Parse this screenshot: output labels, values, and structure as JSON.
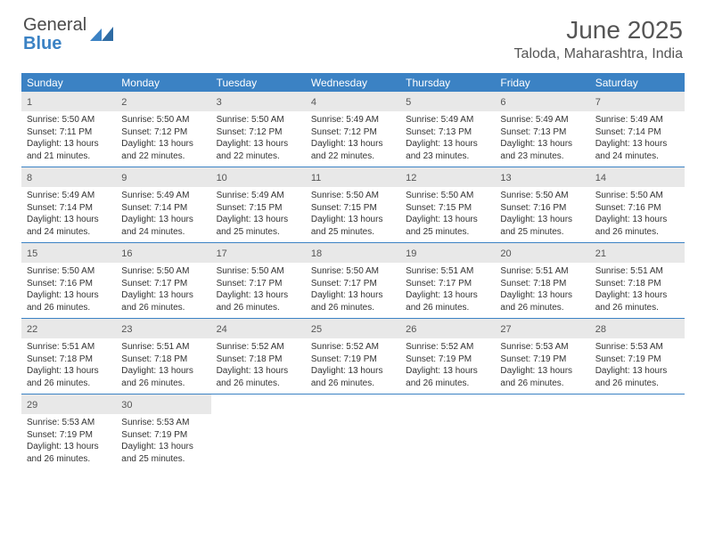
{
  "brand": {
    "part1": "General",
    "part2": "Blue"
  },
  "title": "June 2025",
  "location": "Taloda, Maharashtra, India",
  "colors": {
    "header_bg": "#3b82c4",
    "header_text": "#ffffff",
    "daynum_bg": "#e8e8e8",
    "text": "#333333",
    "title_text": "#555555",
    "border": "#3b82c4"
  },
  "weekdays": [
    "Sunday",
    "Monday",
    "Tuesday",
    "Wednesday",
    "Thursday",
    "Friday",
    "Saturday"
  ],
  "first_weekday_index": 0,
  "days": [
    {
      "n": 1,
      "rise": "5:50 AM",
      "set": "7:11 PM",
      "dlh": 13,
      "dlm": 21
    },
    {
      "n": 2,
      "rise": "5:50 AM",
      "set": "7:12 PM",
      "dlh": 13,
      "dlm": 22
    },
    {
      "n": 3,
      "rise": "5:50 AM",
      "set": "7:12 PM",
      "dlh": 13,
      "dlm": 22
    },
    {
      "n": 4,
      "rise": "5:49 AM",
      "set": "7:12 PM",
      "dlh": 13,
      "dlm": 22
    },
    {
      "n": 5,
      "rise": "5:49 AM",
      "set": "7:13 PM",
      "dlh": 13,
      "dlm": 23
    },
    {
      "n": 6,
      "rise": "5:49 AM",
      "set": "7:13 PM",
      "dlh": 13,
      "dlm": 23
    },
    {
      "n": 7,
      "rise": "5:49 AM",
      "set": "7:14 PM",
      "dlh": 13,
      "dlm": 24
    },
    {
      "n": 8,
      "rise": "5:49 AM",
      "set": "7:14 PM",
      "dlh": 13,
      "dlm": 24
    },
    {
      "n": 9,
      "rise": "5:49 AM",
      "set": "7:14 PM",
      "dlh": 13,
      "dlm": 24
    },
    {
      "n": 10,
      "rise": "5:49 AM",
      "set": "7:15 PM",
      "dlh": 13,
      "dlm": 25
    },
    {
      "n": 11,
      "rise": "5:50 AM",
      "set": "7:15 PM",
      "dlh": 13,
      "dlm": 25
    },
    {
      "n": 12,
      "rise": "5:50 AM",
      "set": "7:15 PM",
      "dlh": 13,
      "dlm": 25
    },
    {
      "n": 13,
      "rise": "5:50 AM",
      "set": "7:16 PM",
      "dlh": 13,
      "dlm": 25
    },
    {
      "n": 14,
      "rise": "5:50 AM",
      "set": "7:16 PM",
      "dlh": 13,
      "dlm": 26
    },
    {
      "n": 15,
      "rise": "5:50 AM",
      "set": "7:16 PM",
      "dlh": 13,
      "dlm": 26
    },
    {
      "n": 16,
      "rise": "5:50 AM",
      "set": "7:17 PM",
      "dlh": 13,
      "dlm": 26
    },
    {
      "n": 17,
      "rise": "5:50 AM",
      "set": "7:17 PM",
      "dlh": 13,
      "dlm": 26
    },
    {
      "n": 18,
      "rise": "5:50 AM",
      "set": "7:17 PM",
      "dlh": 13,
      "dlm": 26
    },
    {
      "n": 19,
      "rise": "5:51 AM",
      "set": "7:17 PM",
      "dlh": 13,
      "dlm": 26
    },
    {
      "n": 20,
      "rise": "5:51 AM",
      "set": "7:18 PM",
      "dlh": 13,
      "dlm": 26
    },
    {
      "n": 21,
      "rise": "5:51 AM",
      "set": "7:18 PM",
      "dlh": 13,
      "dlm": 26
    },
    {
      "n": 22,
      "rise": "5:51 AM",
      "set": "7:18 PM",
      "dlh": 13,
      "dlm": 26
    },
    {
      "n": 23,
      "rise": "5:51 AM",
      "set": "7:18 PM",
      "dlh": 13,
      "dlm": 26
    },
    {
      "n": 24,
      "rise": "5:52 AM",
      "set": "7:18 PM",
      "dlh": 13,
      "dlm": 26
    },
    {
      "n": 25,
      "rise": "5:52 AM",
      "set": "7:19 PM",
      "dlh": 13,
      "dlm": 26
    },
    {
      "n": 26,
      "rise": "5:52 AM",
      "set": "7:19 PM",
      "dlh": 13,
      "dlm": 26
    },
    {
      "n": 27,
      "rise": "5:53 AM",
      "set": "7:19 PM",
      "dlh": 13,
      "dlm": 26
    },
    {
      "n": 28,
      "rise": "5:53 AM",
      "set": "7:19 PM",
      "dlh": 13,
      "dlm": 26
    },
    {
      "n": 29,
      "rise": "5:53 AM",
      "set": "7:19 PM",
      "dlh": 13,
      "dlm": 26
    },
    {
      "n": 30,
      "rise": "5:53 AM",
      "set": "7:19 PM",
      "dlh": 13,
      "dlm": 25
    }
  ],
  "labels": {
    "sunrise": "Sunrise:",
    "sunset": "Sunset:",
    "daylight_prefix": "Daylight:",
    "hours_word": "hours",
    "and_word": "and",
    "minutes_word": "minutes."
  }
}
